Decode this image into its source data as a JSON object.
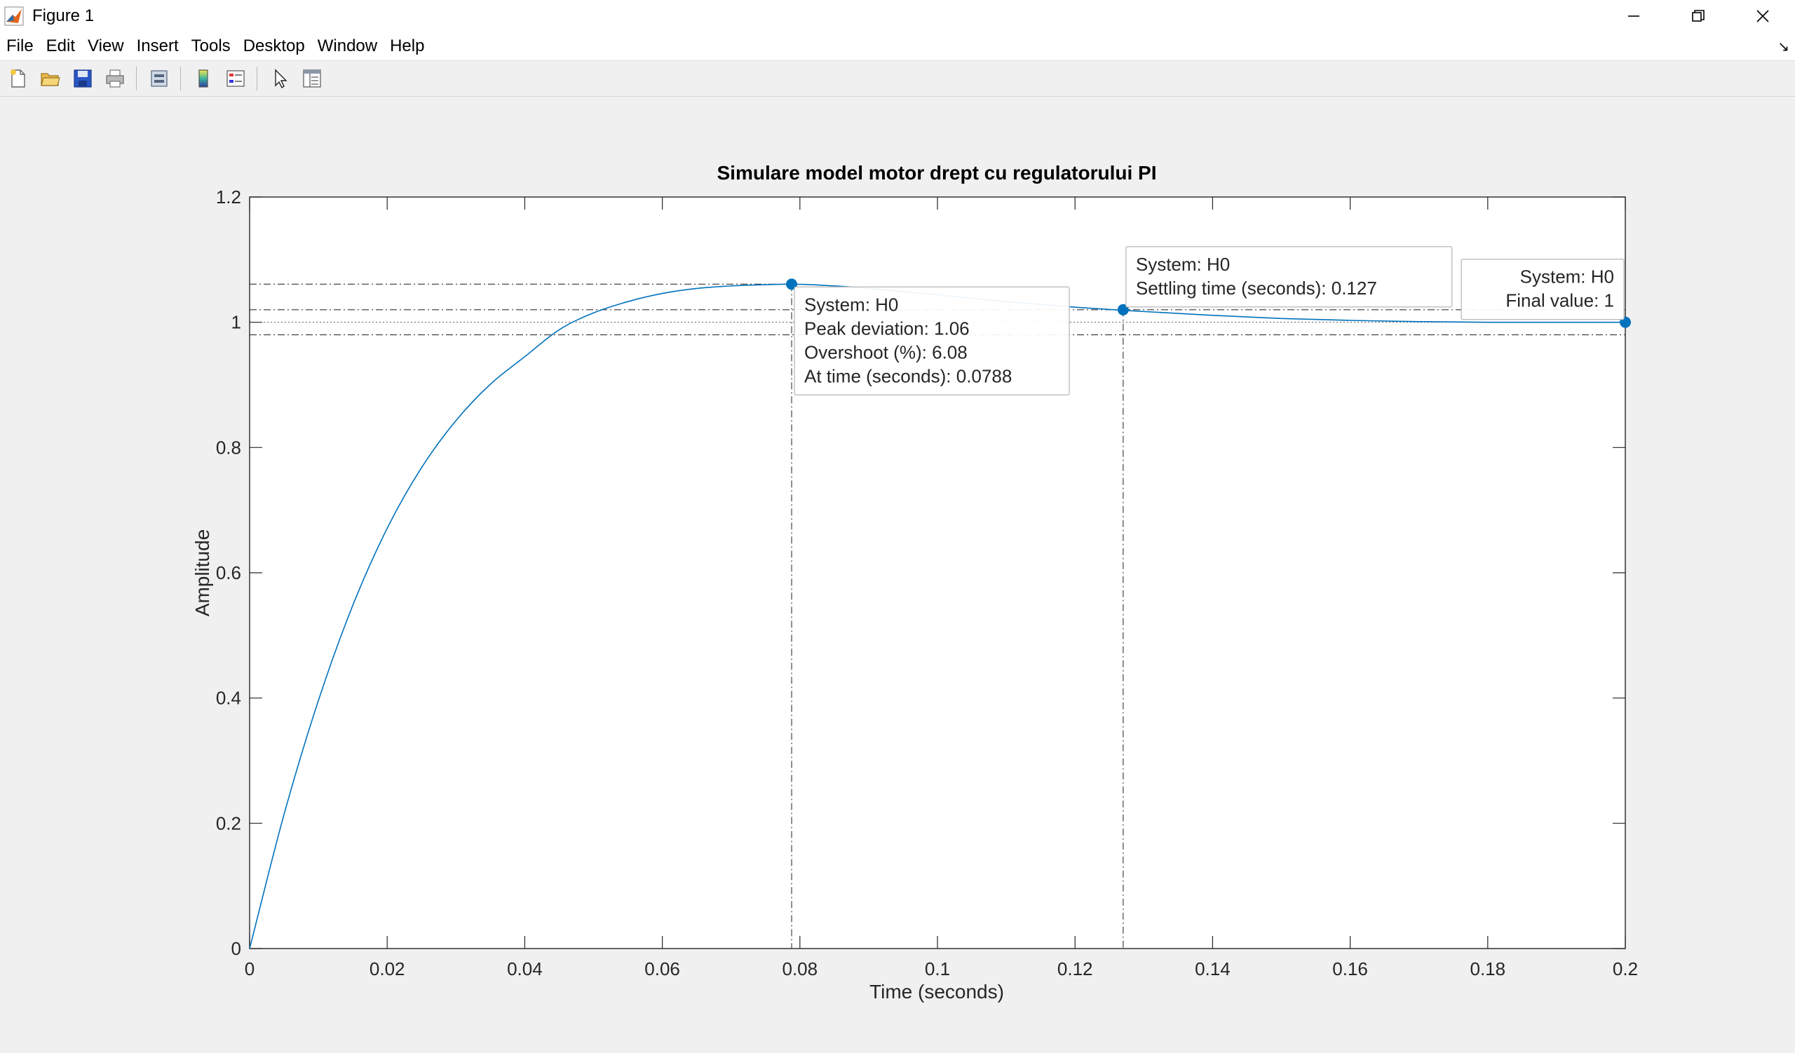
{
  "window": {
    "title": "Figure 1"
  },
  "menu": [
    "File",
    "Edit",
    "View",
    "Insert",
    "Tools",
    "Desktop",
    "Window",
    "Help"
  ],
  "toolbar": [
    "new-figure-icon",
    "open-file-icon",
    "save-icon",
    "print-icon",
    "link-plot-icon",
    "insert-colorbar-icon",
    "insert-legend-icon",
    "edit-plot-pointer-icon",
    "property-inspector-icon"
  ],
  "colors": {
    "line": "#0072bd",
    "marker": "#0072bd",
    "axes": "#262626",
    "bg": "#f0f0f0"
  },
  "chart_data": {
    "type": "line",
    "title": "Simulare model motor drept cu regulatorului PI",
    "xlabel": "Time (seconds)",
    "ylabel": "Amplitude",
    "xlim": [
      0,
      0.2
    ],
    "ylim": [
      0,
      1.2
    ],
    "xticks": [
      "0",
      "0.02",
      "0.04",
      "0.06",
      "0.08",
      "0.1",
      "0.12",
      "0.14",
      "0.16",
      "0.18",
      "0.2"
    ],
    "yticks": [
      "0",
      "0.2",
      "0.4",
      "0.6",
      "0.8",
      "1",
      "1.2"
    ],
    "grid": false,
    "series": [
      {
        "x": [
          0,
          0.005,
          0.01,
          0.015,
          0.02,
          0.025,
          0.03,
          0.035,
          0.04,
          0.045,
          0.05,
          0.055,
          0.06,
          0.065,
          0.07,
          0.075,
          0.0788,
          0.085,
          0.09,
          0.1,
          0.11,
          0.12,
          0.127,
          0.14,
          0.15,
          0.16,
          0.17,
          0.18,
          0.19,
          0.2
        ],
        "y": [
          0,
          0.214,
          0.396,
          0.548,
          0.671,
          0.768,
          0.843,
          0.901,
          0.945,
          0.988,
          1.015,
          1.033,
          1.046,
          1.054,
          1.058,
          1.06,
          1.0608,
          1.058,
          1.054,
          1.044,
          1.033,
          1.024,
          1.019,
          1.011,
          1.006,
          1.003,
          1.001,
          1.0,
          1.0,
          1.0
        ]
      }
    ],
    "reference_lines": {
      "final_value": 1.0,
      "settling_band": [
        0.98,
        1.02
      ],
      "peak_value": 1.0608
    },
    "annotations": [
      {
        "type": "peak",
        "x": 0.0788,
        "y": 1.0608,
        "lines": [
          "System: H0",
          "Peak deviation: 1.06",
          "Overshoot (%): 6.08",
          "At time (seconds): 0.0788"
        ]
      },
      {
        "type": "settling",
        "x": 0.127,
        "y": 1.02,
        "lines": [
          "System: H0",
          "Settling time (seconds): 0.127"
        ]
      },
      {
        "type": "final",
        "x": 0.2,
        "y": 1.0,
        "lines": [
          "System: H0",
          "Final value: 1"
        ]
      }
    ]
  }
}
